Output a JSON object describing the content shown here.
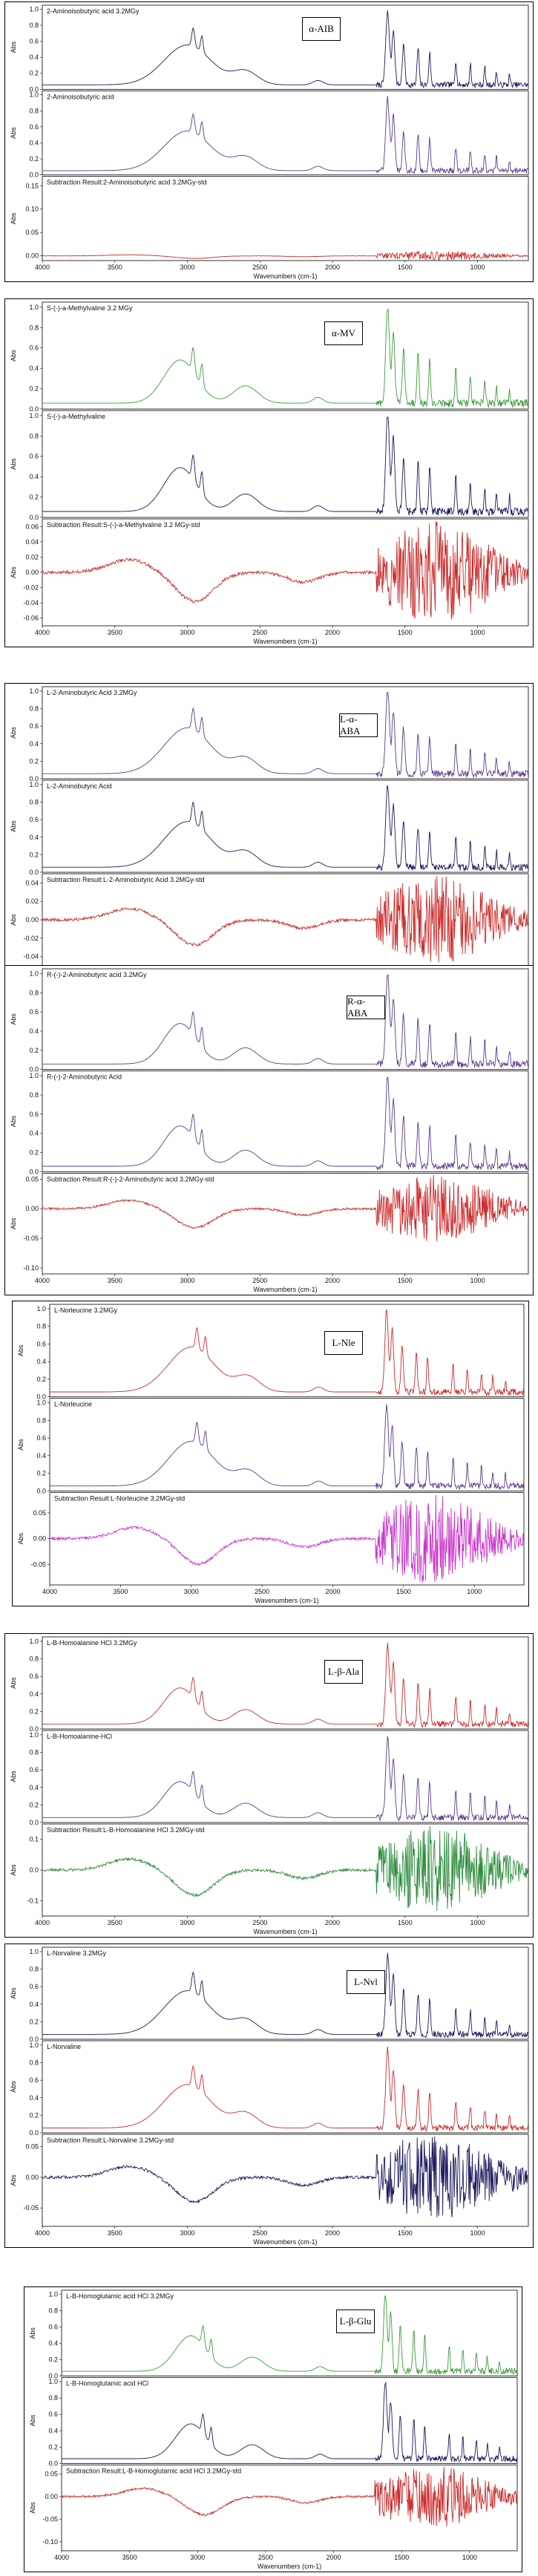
{
  "chart_data": [
    {
      "type": "line",
      "label": "α-AIB",
      "xlabel": "Wavenumbers (cm-1)",
      "xlim": [
        4000,
        650
      ],
      "xticks": [
        "4000",
        "3500",
        "3000",
        "2500",
        "2000",
        "1500",
        "1000"
      ],
      "colors": [
        "#1b1b5e",
        "#5a3b8c",
        "#cc2a2a"
      ],
      "subplots": [
        {
          "name": "2-Aminoisobutyric acid 3.2MGy",
          "ylabel": "Abs",
          "yticks": [
            "0.0",
            "0.2",
            "0.4",
            "0.6",
            "0.8",
            "1.0"
          ],
          "ylim": [
            0,
            1.05
          ]
        },
        {
          "name": "2-Aminoisobutyric acid",
          "ylabel": "Abs",
          "yticks": [
            "0.0",
            "0.2",
            "0.4",
            "0.6",
            "0.8",
            "1.0"
          ],
          "ylim": [
            0,
            1.05
          ]
        },
        {
          "name": "Subtraction Result:2-Aminoisobutyric acid 3.2MGy-std",
          "ylabel": "Abs",
          "yticks": [
            "0.00",
            "0.05",
            "0.10",
            "0.15"
          ],
          "ylim": [
            -0.01,
            0.17
          ]
        }
      ]
    },
    {
      "type": "line",
      "label": "α-MV",
      "xlabel": "Wavenumbers (cm-1)",
      "xlim": [
        4000,
        650
      ],
      "xticks": [
        "4000",
        "3500",
        "3000",
        "2500",
        "2000",
        "1500",
        "1000"
      ],
      "colors": [
        "#3c9c3c",
        "#1b1b5e",
        "#cc2a2a"
      ],
      "subplots": [
        {
          "name": "S-(-)-a-Methylvaline 3.2 MGy",
          "ylabel": "Abs",
          "yticks": [
            "0.0",
            "0.2",
            "0.4",
            "0.6",
            "0.8",
            "1.0"
          ],
          "ylim": [
            0,
            1.05
          ]
        },
        {
          "name": "S-(-)-a-Methylvaline",
          "ylabel": "Abs",
          "yticks": [
            "0.0",
            "0.2",
            "0.4",
            "0.6",
            "0.8",
            "1.0"
          ],
          "ylim": [
            0,
            1.05
          ]
        },
        {
          "name": "Subtraction Result:S-(-)-a-Methylvaline 3.2 MGy-std",
          "ylabel": "Abs",
          "yticks": [
            "-0.06",
            "-0.04",
            "-0.02",
            "0.00",
            "0.02",
            "0.04",
            "0.06"
          ],
          "ylim": [
            -0.07,
            0.07
          ]
        }
      ]
    },
    {
      "type": "line",
      "label": "L-α-ABA",
      "xlabel": "Wavenumbers (cm-1)",
      "xlim": [
        4000,
        650
      ],
      "xticks": [
        "4000",
        "3500",
        "3000",
        "2500",
        "2000",
        "1500",
        "1000"
      ],
      "colors": [
        "#5a3b8c",
        "#1b1b5e",
        "#cc2a2a"
      ],
      "subplots": [
        {
          "name": "L-2-Aminobutyric Acid 3.2MGy",
          "ylabel": "Abs",
          "yticks": [
            "0.0",
            "0.2",
            "0.4",
            "0.6",
            "0.8",
            "1.0"
          ],
          "ylim": [
            0,
            1.05
          ]
        },
        {
          "name": "L-2-Aminobutyric Acid",
          "ylabel": "Abs",
          "yticks": [
            "0.0",
            "0.2",
            "0.4",
            "0.6",
            "0.8",
            "1.0"
          ],
          "ylim": [
            0,
            1.05
          ]
        },
        {
          "name": "Subtraction Result:L-2-Aminobutyric Acid 3.2MGy-std",
          "ylabel": "Abs",
          "yticks": [
            "-0.04",
            "-0.02",
            "0.00",
            "0.02",
            "0.04"
          ],
          "ylim": [
            -0.05,
            0.05
          ]
        }
      ]
    },
    {
      "type": "line",
      "label": "R-α-ABA",
      "xlabel": "Wavenumbers (cm-1)",
      "xlim": [
        4000,
        650
      ],
      "xticks": [
        "4000",
        "3500",
        "3000",
        "2500",
        "2000",
        "1500",
        "1000"
      ],
      "colors": [
        "#5a3b8c",
        "#5a3b8c",
        "#cc2a2a"
      ],
      "subplots": [
        {
          "name": "R-(-)-2-Aminobutyric acid 3.2MGy",
          "ylabel": "Abs",
          "yticks": [
            "0.0",
            "0.2",
            "0.4",
            "0.6",
            "0.8",
            "1.0"
          ],
          "ylim": [
            0,
            1.05
          ]
        },
        {
          "name": "R-(-)-2-Aminobutyric Acid",
          "ylabel": "Abs",
          "yticks": [
            "0.0",
            "0.2",
            "0.4",
            "0.6",
            "0.8",
            "1.0"
          ],
          "ylim": [
            0,
            1.05
          ]
        },
        {
          "name": "Subtraction Result:R-(-)-2-Aminobutyric acid 3.2MGy-std",
          "ylabel": "Abs",
          "yticks": [
            "-0.10",
            "-0.05",
            "0.00",
            "0.05"
          ],
          "ylim": [
            -0.11,
            0.06
          ]
        }
      ]
    },
    {
      "type": "line",
      "label": "L-Nle",
      "xlabel": "Wavenumbers (cm-1)",
      "xlim": [
        4000,
        650
      ],
      "xticks": [
        "4000",
        "3500",
        "3000",
        "2500",
        "2000",
        "1500",
        "1000"
      ],
      "colors": [
        "#cc2a2a",
        "#5a3b8c",
        "#cc33cc"
      ],
      "subplots": [
        {
          "name": "L-Norleucine 3.2MGy",
          "ylabel": "Abs",
          "yticks": [
            "0.0",
            "0.2",
            "0.4",
            "0.6",
            "0.8",
            "1.0"
          ],
          "ylim": [
            0,
            1.05
          ]
        },
        {
          "name": "L-Norleucine",
          "ylabel": "Abs",
          "yticks": [
            "0.0",
            "0.2",
            "0.4",
            "0.6",
            "0.8",
            "1.0"
          ],
          "ylim": [
            0,
            1.05
          ]
        },
        {
          "name": "Subtraction Result:L-Norleucine 3.2MGy-std",
          "ylabel": "Abs",
          "yticks": [
            "-0.05",
            "0.00",
            "0.05"
          ],
          "ylim": [
            -0.09,
            0.09
          ]
        }
      ]
    },
    {
      "type": "line",
      "label": "L-β-Ala",
      "xlabel": "Wavenumbers (cm-1)",
      "xlim": [
        4000,
        650
      ],
      "xticks": [
        "4000",
        "3500",
        "3000",
        "2500",
        "2000",
        "1500",
        "1000"
      ],
      "colors": [
        "#cc2a2a",
        "#5a3b8c",
        "#2c8c3c"
      ],
      "subplots": [
        {
          "name": "L-B-Homoalanine HCl 3.2MGy",
          "ylabel": "Abs",
          "yticks": [
            "0.0",
            "0.2",
            "0.4",
            "0.6",
            "0.8",
            "1.0"
          ],
          "ylim": [
            0,
            1.05
          ]
        },
        {
          "name": "L-B-Homoalanine-HCl",
          "ylabel": "Abs",
          "yticks": [
            "0.0",
            "0.2",
            "0.4",
            "0.6",
            "0.8",
            "1.0"
          ],
          "ylim": [
            0,
            1.05
          ]
        },
        {
          "name": "Subtraction Result:L-B-Homoalanine HCl 3.2MGy-std",
          "ylabel": "Abs",
          "yticks": [
            "-0.1",
            "0.0",
            "0.1"
          ],
          "ylim": [
            -0.15,
            0.15
          ]
        }
      ]
    },
    {
      "type": "line",
      "label": "L-Nvl",
      "xlabel": "Wavenumbers (cm-1)",
      "xlim": [
        4000,
        650
      ],
      "xticks": [
        "4000",
        "3500",
        "3000",
        "2500",
        "2000",
        "1500",
        "1000"
      ],
      "colors": [
        "#1b1b5e",
        "#cc2a2a",
        "#1b1b5e"
      ],
      "subplots": [
        {
          "name": "L-Norvaline 3.2MGy",
          "ylabel": "Abs",
          "yticks": [
            "0.0",
            "0.2",
            "0.4",
            "0.6",
            "0.8",
            "1.0"
          ],
          "ylim": [
            0,
            1.05
          ]
        },
        {
          "name": "L-Norvaline",
          "ylabel": "Abs",
          "yticks": [
            "0.0",
            "0.2",
            "0.4",
            "0.6",
            "0.8",
            "1.0"
          ],
          "ylim": [
            0,
            1.05
          ]
        },
        {
          "name": "Subtraction Result:L-Norvaline 3.2MGy-std",
          "ylabel": "Abs",
          "yticks": [
            "-0.05",
            "0.00",
            "0.05"
          ],
          "ylim": [
            -0.08,
            0.07
          ]
        }
      ]
    },
    {
      "type": "line",
      "label": "L-β-Glu",
      "xlabel": "Wavenumbers (cm-1)",
      "xlim": [
        4000,
        650
      ],
      "xticks": [
        "4000",
        "3500",
        "3000",
        "2500",
        "2000",
        "1500",
        "1000"
      ],
      "colors": [
        "#3c9c3c",
        "#1b1b5e",
        "#cc2a2a"
      ],
      "subplots": [
        {
          "name": "L-B-Homoglutamic acid HCl 3.2MGy",
          "ylabel": "Abs",
          "yticks": [
            "0.0",
            "0.2",
            "0.4",
            "0.6",
            "0.8",
            "1.0"
          ],
          "ylim": [
            0,
            1.05
          ]
        },
        {
          "name": "L-B-Homoglutamic acid HCl",
          "ylabel": "Abs",
          "yticks": [
            "0.0",
            "0.2",
            "0.4",
            "0.6",
            "0.8",
            "1.0"
          ],
          "ylim": [
            0,
            1.05
          ]
        },
        {
          "name": "Subtraction Result:L-B-Homoglutamic acid HCl 3.2MGy-std",
          "ylabel": "Abs",
          "yticks": [
            "-0.10",
            "-0.05",
            "0.00",
            "0.05"
          ],
          "ylim": [
            -0.12,
            0.07
          ]
        }
      ]
    }
  ]
}
